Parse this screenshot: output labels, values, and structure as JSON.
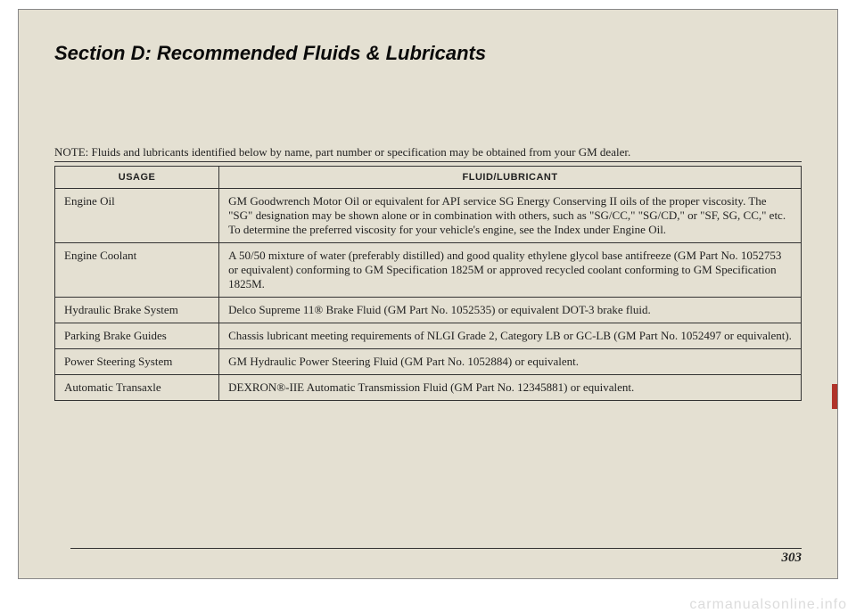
{
  "section_title": "Section D: Recommended Fluids & Lubricants",
  "note_text": "NOTE: Fluids and lubricants identified below by name, part number or specification may be obtained from your GM dealer.",
  "table": {
    "headers": {
      "usage": "USAGE",
      "fluid": "FLUID/LUBRICANT"
    },
    "rows": [
      {
        "usage": "Engine Oil",
        "fluid": "GM Goodwrench Motor Oil or equivalent for API service SG Energy Conserving II oils of the proper viscosity. The \"SG\" designation may be shown alone or in combination with others, such as \"SG/CC,\" \"SG/CD,\" or \"SF, SG, CC,\" etc. To determine the preferred viscosity for your vehicle's engine, see the Index under Engine Oil."
      },
      {
        "usage": "Engine Coolant",
        "fluid": "A 50/50 mixture of water (preferably distilled) and good quality ethylene glycol base antifreeze (GM Part No. 1052753 or equivalent) conforming to GM Specification 1825M or approved recycled coolant conforming to GM Specification 1825M."
      },
      {
        "usage": "Hydraulic Brake System",
        "fluid": "Delco Supreme 11® Brake Fluid (GM Part No. 1052535) or equivalent DOT-3 brake fluid."
      },
      {
        "usage": "Parking Brake Guides",
        "fluid": "Chassis lubricant meeting requirements of NLGI Grade 2, Category LB or GC-LB (GM Part No. 1052497 or equivalent)."
      },
      {
        "usage": "Power Steering System",
        "fluid": "GM Hydraulic Power Steering Fluid (GM Part No. 1052884) or equivalent."
      },
      {
        "usage": "Automatic Transaxle",
        "fluid": "DEXRON®-IIE Automatic Transmission Fluid (GM Part No. 12345881) or equivalent."
      }
    ]
  },
  "page_number": "303",
  "watermark": "carmanualsonline.info",
  "styles": {
    "page_bg": "#e4e0d2",
    "title_fontsize": 22,
    "body_fontsize": 13,
    "header_fontsize": 11,
    "border_color": "#333",
    "tab_color": "#b0332a"
  }
}
